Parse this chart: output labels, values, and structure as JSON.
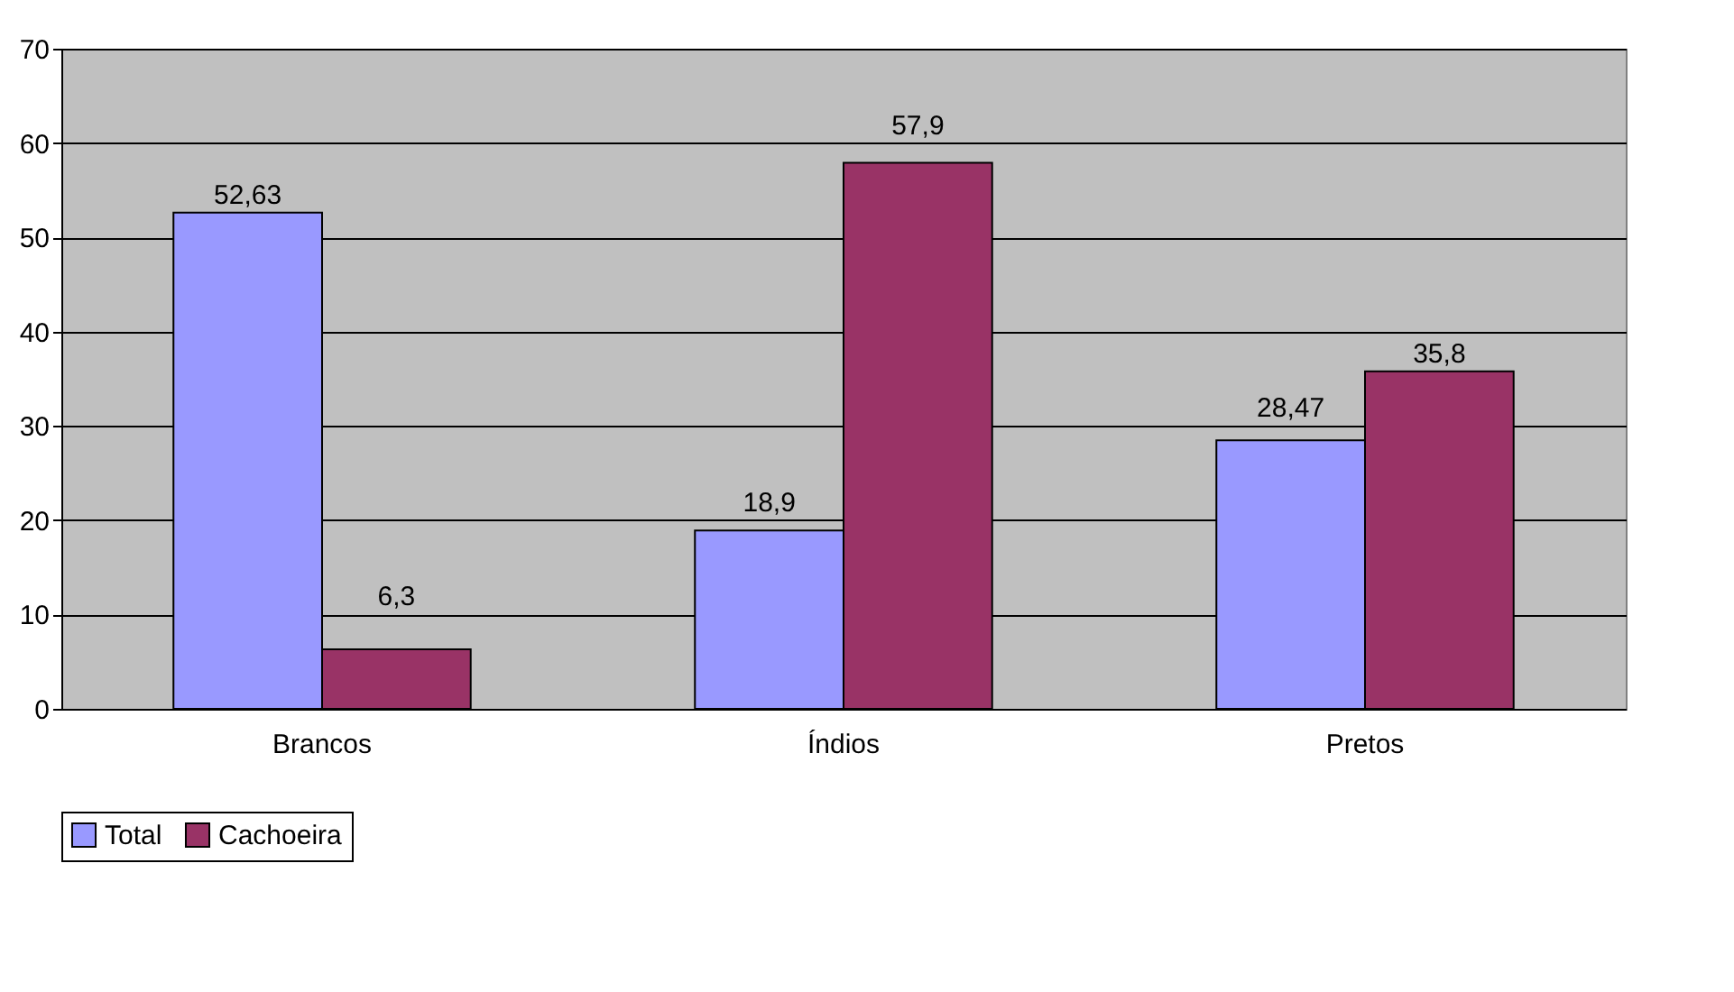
{
  "chart_data": {
    "type": "bar",
    "categories": [
      "Brancos",
      "Índios",
      "Pretos"
    ],
    "series": [
      {
        "name": "Total",
        "color": "#9999ff",
        "values": [
          52.63,
          18.9,
          28.47
        ],
        "value_labels": [
          "52,63",
          "18,9",
          "28,47"
        ]
      },
      {
        "name": "Cachoeira",
        "color": "#993366",
        "values": [
          6.3,
          57.9,
          35.8
        ],
        "value_labels": [
          "6,3",
          "57,9",
          "35,8"
        ]
      }
    ],
    "ylim": [
      0,
      70
    ],
    "yticks": [
      0,
      10,
      20,
      30,
      40,
      50,
      60,
      70
    ],
    "grid": "y",
    "legend": "bottom"
  }
}
